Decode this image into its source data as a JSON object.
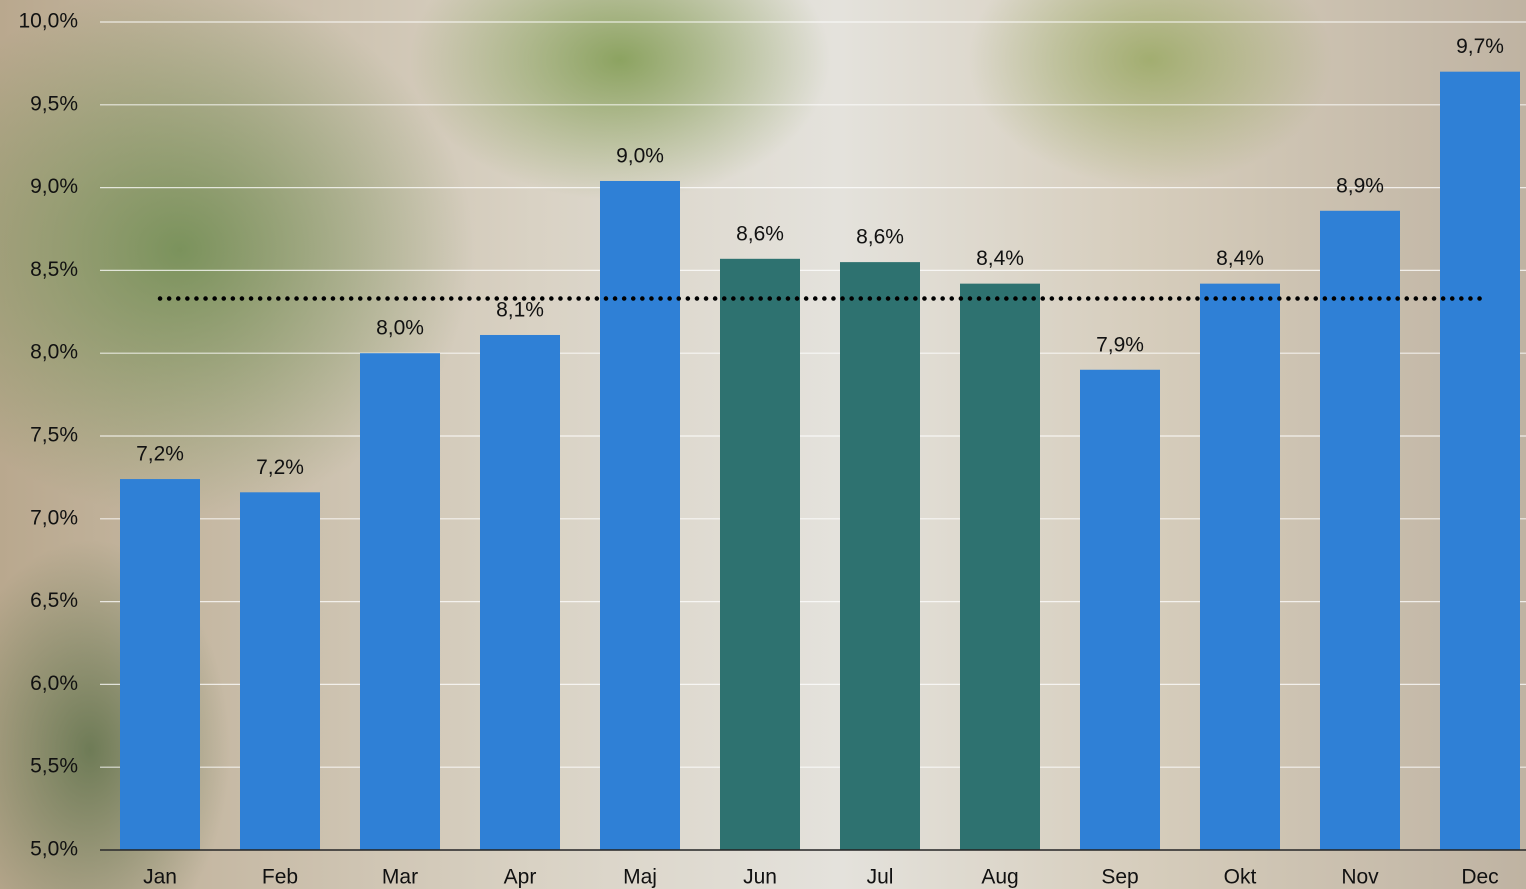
{
  "chart_data": {
    "type": "bar",
    "categories": [
      "Jan",
      "Feb",
      "Mar",
      "Apr",
      "Maj",
      "Jun",
      "Jul",
      "Aug",
      "Sep",
      "Okt",
      "Nov",
      "Dec"
    ],
    "values": [
      7.24,
      7.16,
      8.0,
      8.11,
      9.04,
      8.57,
      8.55,
      8.42,
      7.9,
      8.42,
      8.86,
      9.7
    ],
    "value_labels": [
      "7,2%",
      "7,2%",
      "8,0%",
      "8,1%",
      "9,0%",
      "8,6%",
      "8,6%",
      "8,4%",
      "7,9%",
      "8,4%",
      "8,9%",
      "9,7%"
    ],
    "colors": [
      "#2f80d6",
      "#2f80d6",
      "#2f80d6",
      "#2f80d6",
      "#2f80d6",
      "#2e7270",
      "#2e7270",
      "#2e7270",
      "#2f80d6",
      "#2f80d6",
      "#2f80d6",
      "#2f80d6"
    ],
    "average": 8.33,
    "ylim": [
      5.0,
      10.0
    ],
    "yticks": [
      {
        "value": 5.0,
        "label": "5,0%"
      },
      {
        "value": 5.5,
        "label": "5,5%"
      },
      {
        "value": 6.0,
        "label": "6,0%"
      },
      {
        "value": 6.5,
        "label": "6,5%"
      },
      {
        "value": 7.0,
        "label": "7,0%"
      },
      {
        "value": 7.5,
        "label": "7,5%"
      },
      {
        "value": 8.0,
        "label": "8,0%"
      },
      {
        "value": 8.5,
        "label": "8,5%"
      },
      {
        "value": 9.0,
        "label": "9,0%"
      },
      {
        "value": 9.5,
        "label": "9,5%"
      },
      {
        "value": 10.0,
        "label": "10,0%"
      }
    ],
    "grid": true
  }
}
